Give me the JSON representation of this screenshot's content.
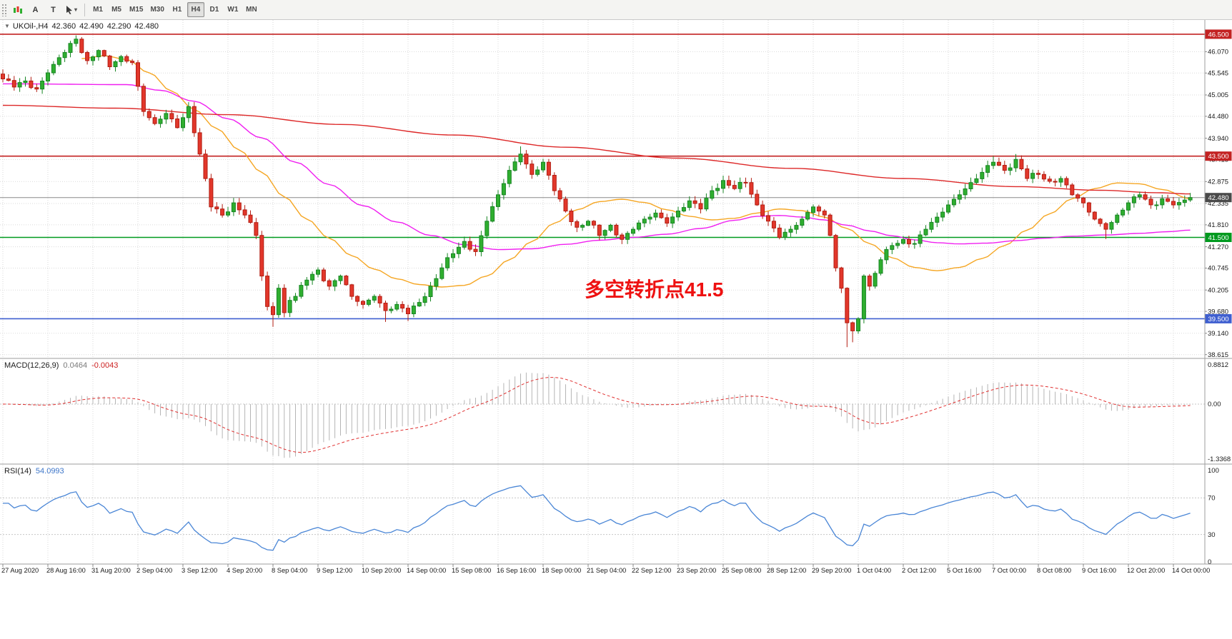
{
  "toolbar": {
    "a_label": "A",
    "t_label": "T",
    "timeframes": [
      "M1",
      "M5",
      "M15",
      "M30",
      "H1",
      "H4",
      "D1",
      "W1",
      "MN"
    ],
    "active_timeframe": "H4"
  },
  "chart": {
    "symbol_period": "UKOil-,H4",
    "open": "42.360",
    "high": "42.490",
    "low": "42.290",
    "close": "42.480",
    "annotation_text": "多空转折点41.5",
    "price_axis": {
      "grid_labels": [
        "46.070",
        "45.545",
        "45.005",
        "44.480",
        "43.940",
        "43.415",
        "42.875",
        "42.335",
        "41.810",
        "41.270",
        "40.745",
        "40.205",
        "39.680",
        "39.140",
        "38.615"
      ]
    },
    "hlines": [
      {
        "price": 46.5,
        "label": "46.500",
        "color": "#c32222"
      },
      {
        "price": 43.5,
        "label": "43.500",
        "color": "#c32222"
      },
      {
        "price": 41.5,
        "label": "41.500",
        "color": "#009a1f"
      },
      {
        "price": 39.5,
        "label": "39.500",
        "color": "#3f5fd0"
      }
    ],
    "current_price": {
      "price": 42.48,
      "label": "42.480",
      "line_color": "#8a8a8a",
      "badge_color": "#4a4a4a"
    }
  },
  "macd": {
    "name": "MACD(12,26,9)",
    "main_value": "0.0464",
    "signal_value": "-0.0043",
    "axis_labels": [
      "0.8812",
      "0.00",
      "-1.3368"
    ]
  },
  "rsi": {
    "name": "RSI(14)",
    "value": "54.0993",
    "axis_labels": [
      "100",
      "70",
      "30",
      "0"
    ],
    "axis_values": [
      100,
      70,
      30,
      0
    ],
    "levels": [
      70,
      30
    ]
  },
  "time_axis": {
    "labels": [
      "27 Aug 2020",
      "28 Aug 16:00",
      "31 Aug 20:00",
      "2 Sep 04:00",
      "3 Sep 12:00",
      "4 Sep 20:00",
      "8 Sep 04:00",
      "9 Sep 12:00",
      "10 Sep 20:00",
      "14 Sep 00:00",
      "15 Sep 08:00",
      "16 Sep 16:00",
      "18 Sep 00:00",
      "21 Sep 04:00",
      "22 Sep 12:00",
      "23 Sep 20:00",
      "25 Sep 08:00",
      "28 Sep 12:00",
      "29 Sep 20:00",
      "1 Oct 04:00",
      "2 Oct 12:00",
      "5 Oct 16:00",
      "7 Oct 00:00",
      "8 Oct 08:00",
      "9 Oct 16:00",
      "12 Oct 20:00",
      "14 Oct 00:00"
    ]
  },
  "chart_data": {
    "type": "candlestick",
    "symbol": "UKOil-",
    "timeframe": "H4",
    "bars": 212,
    "price_range": [
      38.54,
      46.85
    ],
    "close_keyframes": [
      [
        0,
        45.4
      ],
      [
        2,
        45.2
      ],
      [
        4,
        45.35
      ],
      [
        6,
        45.15
      ],
      [
        8,
        45.55
      ],
      [
        11,
        46.05
      ],
      [
        13,
        46.38
      ],
      [
        15,
        45.85
      ],
      [
        17,
        46.1
      ],
      [
        19,
        45.7
      ],
      [
        21,
        45.95
      ],
      [
        23,
        45.8
      ],
      [
        25,
        44.6
      ],
      [
        27,
        44.3
      ],
      [
        29,
        44.55
      ],
      [
        31,
        44.2
      ],
      [
        33,
        44.72
      ],
      [
        35,
        43.55
      ],
      [
        37,
        42.25
      ],
      [
        39,
        42.05
      ],
      [
        41,
        42.35
      ],
      [
        43,
        42.05
      ],
      [
        45,
        41.55
      ],
      [
        46,
        40.55
      ],
      [
        47,
        39.8
      ],
      [
        48,
        39.6
      ],
      [
        49,
        40.25
      ],
      [
        50,
        39.65
      ],
      [
        51,
        39.95
      ],
      [
        52,
        40.05
      ],
      [
        54,
        40.45
      ],
      [
        56,
        40.7
      ],
      [
        58,
        40.3
      ],
      [
        60,
        40.55
      ],
      [
        62,
        40.05
      ],
      [
        64,
        39.85
      ],
      [
        66,
        40.05
      ],
      [
        68,
        39.7
      ],
      [
        70,
        39.85
      ],
      [
        72,
        39.62
      ],
      [
        74,
        39.9
      ],
      [
        76,
        40.3
      ],
      [
        78,
        40.75
      ],
      [
        80,
        41.1
      ],
      [
        82,
        41.4
      ],
      [
        84,
        41.15
      ],
      [
        86,
        41.9
      ],
      [
        88,
        42.55
      ],
      [
        90,
        43.15
      ],
      [
        92,
        43.55
      ],
      [
        94,
        43.05
      ],
      [
        96,
        43.35
      ],
      [
        98,
        42.65
      ],
      [
        100,
        42.15
      ],
      [
        102,
        41.75
      ],
      [
        104,
        41.9
      ],
      [
        106,
        41.55
      ],
      [
        108,
        41.8
      ],
      [
        110,
        41.45
      ],
      [
        112,
        41.7
      ],
      [
        114,
        41.95
      ],
      [
        116,
        42.1
      ],
      [
        118,
        41.85
      ],
      [
        120,
        42.15
      ],
      [
        122,
        42.4
      ],
      [
        124,
        42.2
      ],
      [
        126,
        42.65
      ],
      [
        128,
        42.9
      ],
      [
        130,
        42.7
      ],
      [
        132,
        42.85
      ],
      [
        134,
        42.3
      ],
      [
        136,
        41.9
      ],
      [
        138,
        41.5
      ],
      [
        140,
        41.7
      ],
      [
        142,
        41.95
      ],
      [
        144,
        42.25
      ],
      [
        146,
        42.05
      ],
      [
        147,
        41.55
      ],
      [
        148,
        40.75
      ],
      [
        149,
        40.25
      ],
      [
        150,
        39.4
      ],
      [
        151,
        39.2
      ],
      [
        152,
        39.5
      ],
      [
        153,
        40.55
      ],
      [
        154,
        40.3
      ],
      [
        156,
        40.95
      ],
      [
        158,
        41.3
      ],
      [
        160,
        41.45
      ],
      [
        162,
        41.35
      ],
      [
        164,
        41.7
      ],
      [
        166,
        42.0
      ],
      [
        168,
        42.3
      ],
      [
        170,
        42.55
      ],
      [
        172,
        42.85
      ],
      [
        174,
        43.1
      ],
      [
        176,
        43.35
      ],
      [
        178,
        43.15
      ],
      [
        180,
        43.42
      ],
      [
        182,
        42.95
      ],
      [
        184,
        43.05
      ],
      [
        186,
        42.88
      ],
      [
        188,
        42.95
      ],
      [
        190,
        42.55
      ],
      [
        192,
        42.35
      ],
      [
        194,
        41.95
      ],
      [
        196,
        41.7
      ],
      [
        198,
        42.05
      ],
      [
        200,
        42.35
      ],
      [
        202,
        42.55
      ],
      [
        204,
        42.3
      ],
      [
        206,
        42.45
      ],
      [
        208,
        42.3
      ],
      [
        211,
        42.48
      ]
    ],
    "wick_overrides": [
      [
        13,
        46.47,
        null
      ],
      [
        48,
        null,
        39.3
      ],
      [
        68,
        null,
        39.42
      ],
      [
        72,
        null,
        39.44
      ],
      [
        92,
        43.74,
        null
      ],
      [
        150,
        null,
        38.8
      ],
      [
        151,
        null,
        38.92
      ],
      [
        176,
        43.5,
        null
      ],
      [
        180,
        43.55,
        null
      ],
      [
        196,
        null,
        41.46
      ]
    ],
    "ma_lines": [
      {
        "name": "ma-fast-orange",
        "color": "#f5a623",
        "points": [
          [
            14,
            45.9
          ],
          [
            18,
            45.97
          ],
          [
            22,
            45.88
          ],
          [
            26,
            45.55
          ],
          [
            30,
            45.1
          ],
          [
            34,
            44.65
          ],
          [
            38,
            44.18
          ],
          [
            42,
            43.65
          ],
          [
            46,
            43.1
          ],
          [
            50,
            42.5
          ],
          [
            54,
            41.95
          ],
          [
            58,
            41.48
          ],
          [
            62,
            41.05
          ],
          [
            66,
            40.72
          ],
          [
            70,
            40.48
          ],
          [
            74,
            40.34
          ],
          [
            78,
            40.28
          ],
          [
            82,
            40.32
          ],
          [
            86,
            40.55
          ],
          [
            90,
            40.95
          ],
          [
            94,
            41.4
          ],
          [
            98,
            41.85
          ],
          [
            102,
            42.18
          ],
          [
            106,
            42.38
          ],
          [
            110,
            42.44
          ],
          [
            114,
            42.36
          ],
          [
            118,
            42.18
          ],
          [
            122,
            42.02
          ],
          [
            126,
            41.93
          ],
          [
            130,
            41.97
          ],
          [
            134,
            42.1
          ],
          [
            138,
            42.2
          ],
          [
            142,
            42.16
          ],
          [
            146,
            42.0
          ],
          [
            150,
            41.72
          ],
          [
            154,
            41.35
          ],
          [
            158,
            41.0
          ],
          [
            162,
            40.76
          ],
          [
            166,
            40.68
          ],
          [
            170,
            40.76
          ],
          [
            174,
            40.98
          ],
          [
            178,
            41.3
          ],
          [
            182,
            41.68
          ],
          [
            186,
            42.08
          ],
          [
            190,
            42.45
          ],
          [
            194,
            42.7
          ],
          [
            198,
            42.84
          ],
          [
            202,
            42.82
          ],
          [
            206,
            42.68
          ],
          [
            211,
            42.45
          ]
        ]
      },
      {
        "name": "ma-mid-magenta",
        "color": "#f01ff0",
        "points": [
          [
            0,
            45.28
          ],
          [
            22,
            45.26
          ],
          [
            28,
            45.12
          ],
          [
            34,
            44.85
          ],
          [
            40,
            44.42
          ],
          [
            46,
            43.95
          ],
          [
            52,
            43.35
          ],
          [
            58,
            42.8
          ],
          [
            64,
            42.28
          ],
          [
            70,
            41.88
          ],
          [
            76,
            41.55
          ],
          [
            82,
            41.32
          ],
          [
            88,
            41.2
          ],
          [
            94,
            41.22
          ],
          [
            100,
            41.33
          ],
          [
            106,
            41.43
          ],
          [
            112,
            41.5
          ],
          [
            118,
            41.58
          ],
          [
            124,
            41.72
          ],
          [
            130,
            41.92
          ],
          [
            134,
            42.02
          ],
          [
            138,
            42.04
          ],
          [
            142,
            42.0
          ],
          [
            146,
            41.93
          ],
          [
            150,
            41.8
          ],
          [
            154,
            41.66
          ],
          [
            158,
            41.54
          ],
          [
            162,
            41.44
          ],
          [
            166,
            41.37
          ],
          [
            170,
            41.34
          ],
          [
            175,
            41.36
          ],
          [
            180,
            41.42
          ],
          [
            185,
            41.48
          ],
          [
            190,
            41.53
          ],
          [
            196,
            41.56
          ],
          [
            202,
            41.6
          ],
          [
            207,
            41.64
          ],
          [
            211,
            41.68
          ]
        ]
      },
      {
        "name": "ma-slow-red",
        "color": "#dd2828",
        "points": [
          [
            0,
            44.75
          ],
          [
            20,
            44.68
          ],
          [
            40,
            44.52
          ],
          [
            60,
            44.28
          ],
          [
            80,
            44.02
          ],
          [
            100,
            43.72
          ],
          [
            120,
            43.45
          ],
          [
            140,
            43.2
          ],
          [
            160,
            42.95
          ],
          [
            180,
            42.75
          ],
          [
            195,
            42.66
          ],
          [
            205,
            42.6
          ],
          [
            211,
            42.57
          ]
        ]
      }
    ],
    "colors": {
      "up": "#2fae2f",
      "up_stroke": "#178523",
      "down": "#e2372b",
      "down_stroke": "#b21d12",
      "macd_hist": "#b5b5b5",
      "macd_signal": "#e03030",
      "rsi_line": "#4a86d6",
      "grid": "#dadada"
    }
  }
}
